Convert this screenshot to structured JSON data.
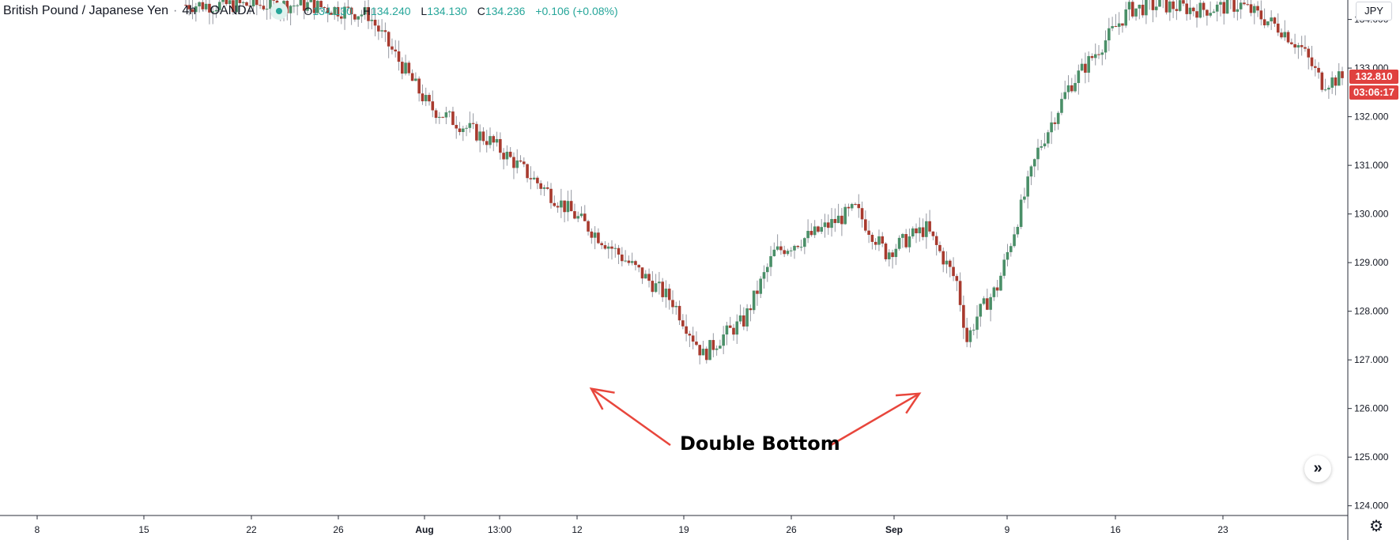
{
  "header": {
    "symbol_name": "British Pound / Japanese Yen",
    "interval": "4h",
    "broker": "OANDA",
    "ohlc": {
      "open_key": "O",
      "open": "134.130",
      "high_key": "H",
      "high": "134.240",
      "low_key": "L",
      "low": "134.130",
      "close_key": "C",
      "close": "134.236",
      "change": "+0.106 (+0.08%)"
    }
  },
  "currency": "JPY",
  "last_price": "132.810",
  "countdown": "03:06:17",
  "annotation": "Double Bottom",
  "colors": {
    "up": "#26a69a",
    "down": "#c0392b",
    "upBody": "#4a8f68",
    "downBody": "#a83a2e",
    "label": "#e0413f",
    "arrow": "#e8463c"
  },
  "chart_data": {
    "type": "candlestick",
    "yaxis": {
      "range": [
        123.8,
        134.4
      ],
      "ticks": [
        "124.000",
        "125.000",
        "126.000",
        "127.000",
        "128.000",
        "129.000",
        "130.000",
        "131.000",
        "132.000",
        "133.000",
        "134.000"
      ]
    },
    "xaxis": {
      "labels": [
        "8",
        "15",
        "22",
        "26",
        "Aug",
        "13:00",
        "12",
        "19",
        "26",
        "Sep",
        "9",
        "16",
        "23"
      ]
    },
    "series": [
      {
        "name": "close",
        "x_labels": [
          "8",
          "15",
          "22",
          "26",
          "Aug",
          "12",
          "19",
          "26",
          "Sep",
          "9",
          "16",
          "23"
        ],
        "points": [
          [
            0,
            134.3
          ],
          [
            3,
            134.3
          ],
          [
            6,
            134.3
          ],
          [
            9,
            134.1
          ],
          [
            12,
            132.2
          ],
          [
            15,
            131.5
          ],
          [
            18,
            130.4
          ],
          [
            21,
            129.3
          ],
          [
            24,
            128.2
          ],
          [
            25.5,
            127.1
          ],
          [
            26.5,
            127.5
          ],
          [
            27.5,
            127.8
          ],
          [
            29,
            129.2
          ],
          [
            31,
            129.6
          ],
          [
            33,
            130.1
          ],
          [
            34.5,
            129.2
          ],
          [
            36,
            129.6
          ],
          [
            36.5,
            129.7
          ],
          [
            38,
            128.6
          ],
          [
            38.5,
            127.4
          ],
          [
            39,
            127.9
          ],
          [
            40,
            128.5
          ],
          [
            42,
            131.3
          ],
          [
            43.5,
            132.6
          ],
          [
            45,
            133.4
          ],
          [
            46.5,
            134.2
          ],
          [
            48,
            134.3
          ],
          [
            50,
            134.2
          ],
          [
            52,
            134.3
          ],
          [
            54,
            133.8
          ],
          [
            55,
            133.4
          ],
          [
            56,
            132.7
          ],
          [
            57,
            132.8
          ]
        ]
      },
      {
        "name": "lows",
        "values": [
          126.7,
          126.6
        ]
      }
    ],
    "annotation": {
      "text": "Double Bottom",
      "points_to": [
        "12",
        "Sep"
      ]
    }
  }
}
